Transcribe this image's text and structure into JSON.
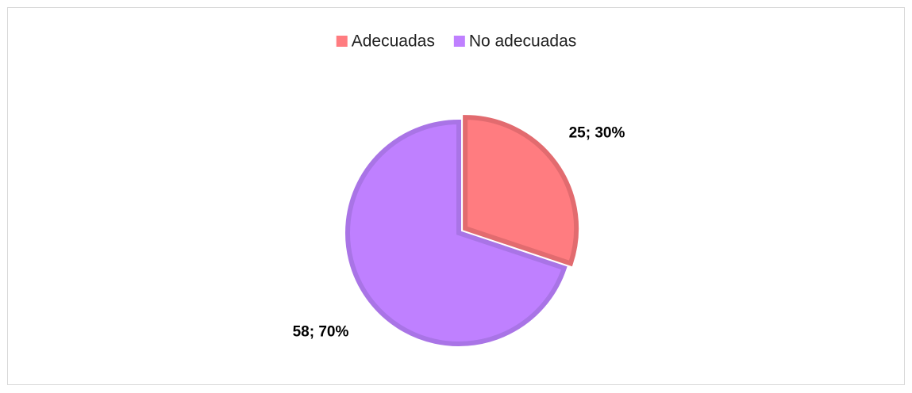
{
  "chart_data": {
    "type": "pie",
    "categories": [
      "Adecuadas",
      "No adecuadas"
    ],
    "values": [
      25,
      58
    ],
    "value_labels": [
      "25; 30%",
      "58; 70%"
    ],
    "colors": [
      "#ff7c80",
      "#bf80ff"
    ],
    "stroke_colors": [
      "#e26b6f",
      "#a974e6"
    ],
    "legend": "top"
  }
}
